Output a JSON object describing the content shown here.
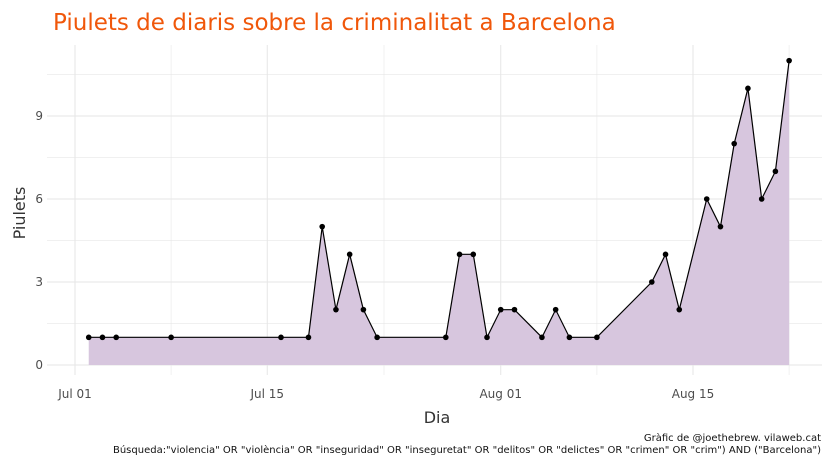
{
  "chart_data": {
    "type": "area",
    "title": "Piulets de diaris sobre la criminalitat a Barcelona",
    "xlabel": "Dia",
    "ylabel": "Piulets",
    "x_ticks": [
      {
        "date": "2016-07-01",
        "label": "Jul 01"
      },
      {
        "date": "2016-07-15",
        "label": "Jul 15"
      },
      {
        "date": "2016-08-01",
        "label": "Aug 01"
      },
      {
        "date": "2016-08-15",
        "label": "Aug 15"
      }
    ],
    "y_ticks": [
      0,
      3,
      6,
      9
    ],
    "xlim": [
      "2016-06-30",
      "2016-08-24"
    ],
    "ylim": [
      0,
      11
    ],
    "grid": true,
    "colors": {
      "fill": "#d7c6de",
      "line": "#000000",
      "point": "#000000",
      "title": "#f0570a"
    },
    "series": [
      {
        "x": [
          "2016-07-02",
          "2016-07-03",
          "2016-07-04",
          "2016-07-08",
          "2016-07-16",
          "2016-07-18",
          "2016-07-19",
          "2016-07-20",
          "2016-07-21",
          "2016-07-22",
          "2016-07-23",
          "2016-07-28",
          "2016-07-29",
          "2016-07-30",
          "2016-07-31",
          "2016-08-01",
          "2016-08-02",
          "2016-08-04",
          "2016-08-05",
          "2016-08-06",
          "2016-08-08",
          "2016-08-12",
          "2016-08-13",
          "2016-08-14",
          "2016-08-16",
          "2016-08-17",
          "2016-08-18",
          "2016-08-19",
          "2016-08-20",
          "2016-08-21",
          "2016-08-22"
        ],
        "y": [
          1,
          1,
          1,
          1,
          1,
          1,
          5,
          2,
          4,
          2,
          1,
          1,
          4,
          4,
          1,
          2,
          2,
          1,
          2,
          1,
          1,
          3,
          4,
          2,
          6,
          5,
          8,
          10,
          6,
          7,
          11
        ]
      }
    ],
    "caption_line1": "Gràfic de @joethebrew. vilaweb.cat",
    "caption_line2": "Búsqueda:\"violencia\" OR \"violència\" OR \"inseguridad\" OR \"inseguretat\" OR \"delitos\" OR \"delictes\" OR \"crimen\" OR \"crim\") AND (\"Barcelona\")"
  }
}
